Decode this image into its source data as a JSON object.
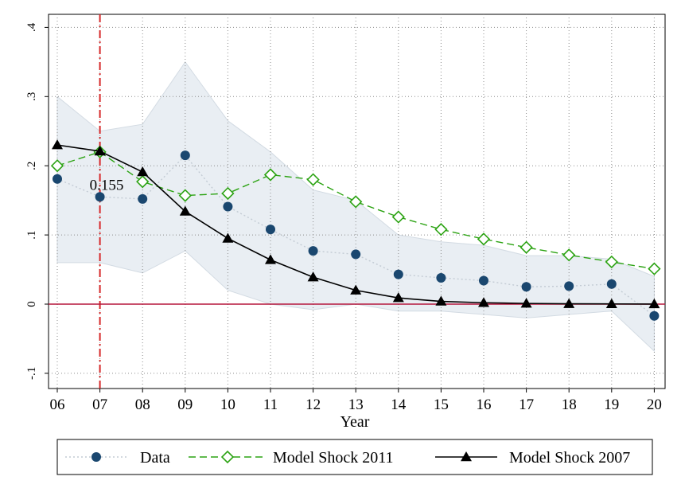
{
  "chart_data": {
    "type": "line",
    "xlabel": "Year",
    "ylabel": "",
    "categories": [
      "06",
      "07",
      "08",
      "09",
      "10",
      "11",
      "12",
      "13",
      "14",
      "15",
      "16",
      "17",
      "18",
      "19",
      "20"
    ],
    "ylim": [
      -0.1,
      0.4
    ],
    "yticks": [
      {
        "value": -0.1,
        "label": "-.1"
      },
      {
        "value": 0,
        "label": "0"
      },
      {
        "value": 0.1,
        "label": ".1"
      },
      {
        "value": 0.2,
        "label": ".2"
      },
      {
        "value": 0.3,
        "label": ".3"
      },
      {
        "value": 0.4,
        "label": ".4"
      }
    ],
    "grid": true,
    "legend_position": "bottom",
    "confidence_band": {
      "upper": [
        0.3,
        0.25,
        0.26,
        0.35,
        0.265,
        0.22,
        0.165,
        0.15,
        0.1,
        0.09,
        0.085,
        0.07,
        0.07,
        0.065,
        0.04
      ],
      "lower": [
        0.06,
        0.06,
        0.045,
        0.077,
        0.02,
        0.0,
        -0.008,
        0.0,
        -0.01,
        -0.01,
        -0.015,
        -0.02,
        -0.015,
        -0.01,
        -0.068
      ],
      "color": "#e9eef3"
    },
    "series": [
      {
        "name": "Data",
        "values": [
          0.181,
          0.155,
          0.152,
          0.215,
          0.141,
          0.108,
          0.077,
          0.072,
          0.043,
          0.038,
          0.034,
          0.025,
          0.026,
          0.029,
          -0.017
        ],
        "color": "#1a476f",
        "line_color": "#c3cbd4",
        "line_style": "dotted",
        "marker": "circle"
      },
      {
        "name": "Model Shock 2011",
        "values": [
          0.2,
          0.22,
          0.177,
          0.157,
          0.16,
          0.187,
          0.18,
          0.148,
          0.126,
          0.108,
          0.094,
          0.082,
          0.071,
          0.061,
          0.051
        ],
        "color": "#2ca313",
        "line_style": "dashed",
        "marker": "diamond-open"
      },
      {
        "name": "Model Shock 2007",
        "values": [
          0.23,
          0.221,
          0.191,
          0.134,
          0.095,
          0.064,
          0.039,
          0.02,
          0.009,
          0.004,
          0.002,
          0.001,
          0.0005,
          0.0003,
          0.0001
        ],
        "color": "#000000",
        "line_style": "solid",
        "marker": "triangle"
      }
    ],
    "reference_lines": {
      "vertical_at_category": "07",
      "vertical_color": "#d62728",
      "horizontal_at_value": 0,
      "horizontal_color": "#b5173c"
    },
    "annotations": [
      {
        "text": "0.155",
        "category": "07",
        "value": 0.155
      }
    ]
  }
}
